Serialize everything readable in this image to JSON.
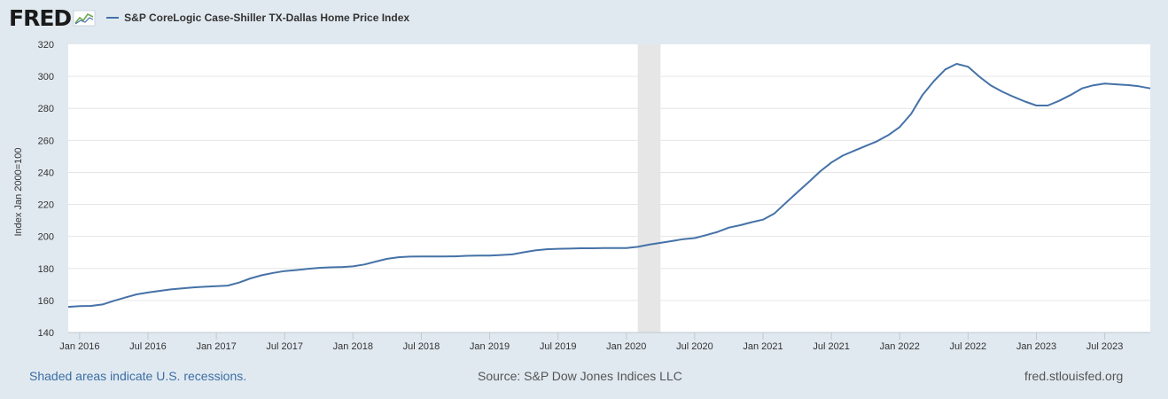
{
  "header": {
    "logo_text": "FRED",
    "legend_label": "S&P CoreLogic Case-Shiller TX-Dallas Home Price Index",
    "series_color": "#4572a7"
  },
  "footer": {
    "recession_note": "Shaded areas indicate U.S. recessions.",
    "source": "Source: S&P Dow Jones Indices LLC",
    "site": "fred.stlouisfed.org"
  },
  "chart_data": {
    "type": "line",
    "title": "",
    "ylabel": "Index Jan 2000=100",
    "xlabel": "",
    "ylim": [
      140,
      320
    ],
    "yticks": [
      140,
      160,
      180,
      200,
      220,
      240,
      260,
      280,
      300,
      320
    ],
    "xticks": [
      "Jan 2016",
      "Jul 2016",
      "Jan 2017",
      "Jul 2017",
      "Jan 2018",
      "Jul 2018",
      "Jan 2019",
      "Jul 2019",
      "Jan 2020",
      "Jul 2020",
      "Jan 2021",
      "Jul 2021",
      "Jan 2022",
      "Jul 2022",
      "Jan 2023",
      "Jul 2023"
    ],
    "xrange": [
      "2015-12",
      "2023-11"
    ],
    "grid": true,
    "legend_position": "top",
    "recessions": [
      {
        "start": "2020-02",
        "end": "2020-04"
      }
    ],
    "series": [
      {
        "name": "S&P CoreLogic Case-Shiller TX-Dallas Home Price Index",
        "color": "#4572a7",
        "x": [
          "2015-12",
          "2016-01",
          "2016-02",
          "2016-03",
          "2016-04",
          "2016-05",
          "2016-06",
          "2016-07",
          "2016-08",
          "2016-09",
          "2016-10",
          "2016-11",
          "2016-12",
          "2017-01",
          "2017-02",
          "2017-03",
          "2017-04",
          "2017-05",
          "2017-06",
          "2017-07",
          "2017-08",
          "2017-09",
          "2017-10",
          "2017-11",
          "2017-12",
          "2018-01",
          "2018-02",
          "2018-03",
          "2018-04",
          "2018-05",
          "2018-06",
          "2018-07",
          "2018-08",
          "2018-09",
          "2018-10",
          "2018-11",
          "2018-12",
          "2019-01",
          "2019-02",
          "2019-03",
          "2019-04",
          "2019-05",
          "2019-06",
          "2019-07",
          "2019-08",
          "2019-09",
          "2019-10",
          "2019-11",
          "2019-12",
          "2020-01",
          "2020-02",
          "2020-03",
          "2020-04",
          "2020-05",
          "2020-06",
          "2020-07",
          "2020-08",
          "2020-09",
          "2020-10",
          "2020-11",
          "2020-12",
          "2021-01",
          "2021-02",
          "2021-03",
          "2021-04",
          "2021-05",
          "2021-06",
          "2021-07",
          "2021-08",
          "2021-09",
          "2021-10",
          "2021-11",
          "2021-12",
          "2022-01",
          "2022-02",
          "2022-03",
          "2022-04",
          "2022-05",
          "2022-06",
          "2022-07",
          "2022-08",
          "2022-09",
          "2022-10",
          "2022-11",
          "2022-12",
          "2023-01",
          "2023-02",
          "2023-03",
          "2023-04",
          "2023-05",
          "2023-06",
          "2023-07",
          "2023-08",
          "2023-09",
          "2023-10",
          "2023-11"
        ],
        "y": [
          156.0,
          156.5,
          156.6,
          157.5,
          159.8,
          161.8,
          163.8,
          165.0,
          166.0,
          166.9,
          167.5,
          168.2,
          168.6,
          168.9,
          169.3,
          171.2,
          173.8,
          175.8,
          177.2,
          178.4,
          179.0,
          179.7,
          180.4,
          180.7,
          180.9,
          181.3,
          182.5,
          184.3,
          186.0,
          187.0,
          187.4,
          187.5,
          187.5,
          187.5,
          187.6,
          187.9,
          188.0,
          188.1,
          188.4,
          188.8,
          190.1,
          191.3,
          192.0,
          192.3,
          192.4,
          192.6,
          192.6,
          192.8,
          192.7,
          192.8,
          193.5,
          194.9,
          196.0,
          197.1,
          198.3,
          199.0,
          200.8,
          202.8,
          205.5,
          207.0,
          208.9,
          210.5,
          214.4,
          221.0,
          227.5,
          233.9,
          240.5,
          246.2,
          250.5,
          253.5,
          256.5,
          259.4,
          263.3,
          268.3,
          276.5,
          288.3,
          297.0,
          304.3,
          307.8,
          306.0,
          299.8,
          294.3,
          290.4,
          287.2,
          284.3,
          281.8,
          281.8,
          284.7,
          288.3,
          292.5,
          294.4,
          295.5,
          295.0,
          294.6,
          293.8,
          292.5
        ]
      }
    ]
  }
}
